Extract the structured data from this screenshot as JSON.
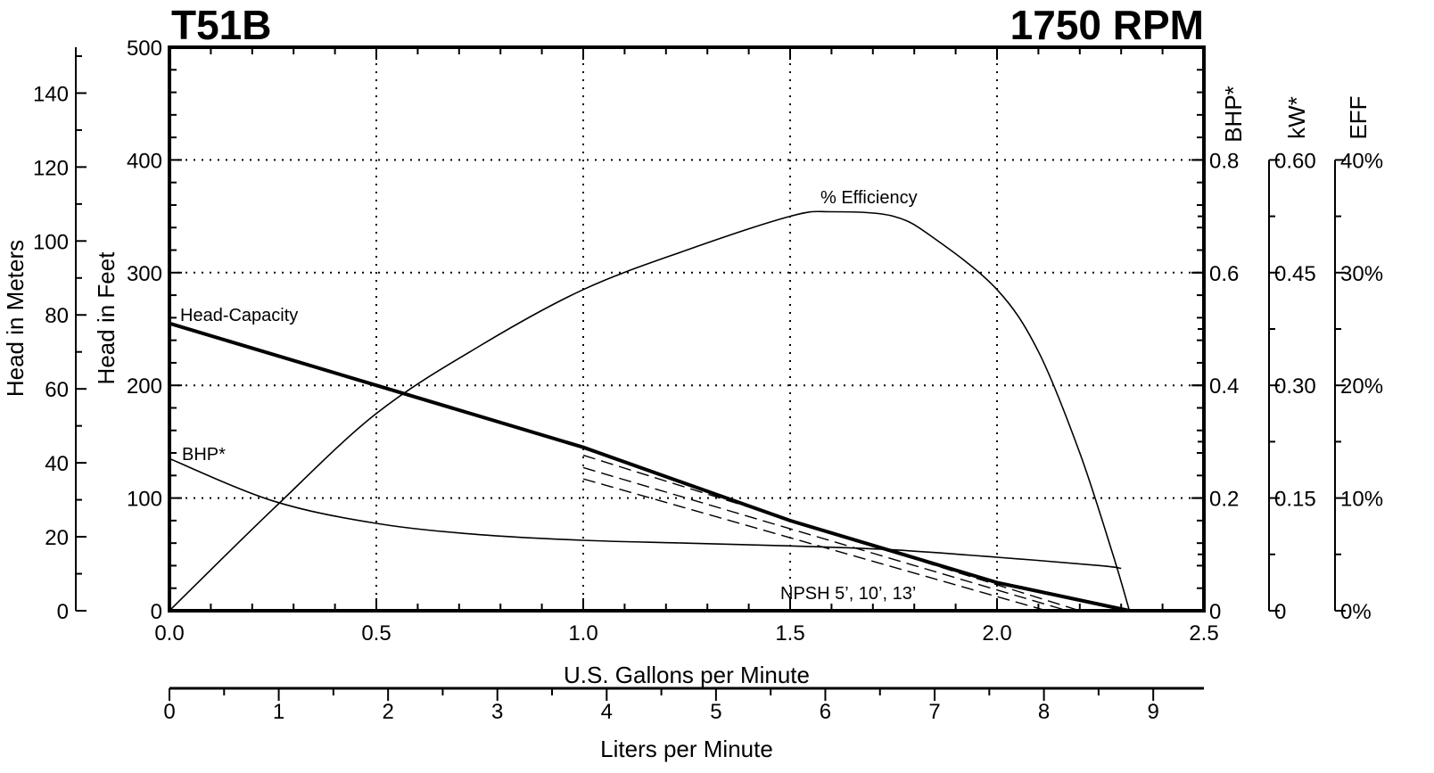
{
  "chart_data": {
    "type": "line",
    "title_left": "T51B",
    "title_right": "1750 RPM",
    "xlabel": "U.S. Gallons per Minute",
    "xlabel_secondary": "Liters per Minute",
    "ylabel_feet": "Head in Feet",
    "ylabel_meters": "Head in Meters",
    "ylabel_bhp": "BHP*",
    "ylabel_kw": "kW*",
    "ylabel_eff": "EFF",
    "xlim": [
      0,
      2.5
    ],
    "ylim_feet": [
      0,
      500
    ],
    "x_ticks": [
      "0.0",
      "0.5",
      "1.0",
      "1.5",
      "2.0",
      "2.5"
    ],
    "y_ticks_feet": [
      "0",
      "100",
      "200",
      "300",
      "400",
      "500"
    ],
    "y_ticks_meters": [
      "0",
      "20",
      "40",
      "60",
      "80",
      "100",
      "120",
      "140"
    ],
    "lpm_ticks": [
      "0",
      "1",
      "2",
      "3",
      "4",
      "5",
      "6",
      "7",
      "8",
      "9"
    ],
    "bhp_ticks": [
      "0",
      "0.2",
      "0.4",
      "0.6",
      "0.8"
    ],
    "kw_ticks": [
      "0",
      "0.15",
      "0.30",
      "0.45",
      "0.60"
    ],
    "eff_ticks": [
      "0%",
      "10%",
      "20%",
      "30%",
      "40%"
    ],
    "grid": true,
    "series": [
      {
        "name": "Head-Capacity",
        "units": "ft",
        "x": [
          0,
          0.5,
          1.0,
          1.5,
          2.0,
          2.32
        ],
        "y": [
          255,
          200,
          145,
          80,
          25,
          0
        ]
      },
      {
        "name": "% Efficiency",
        "units": "%",
        "x": [
          0,
          0.25,
          0.5,
          0.75,
          1.0,
          1.25,
          1.5,
          1.6,
          1.75,
          1.85,
          2.0,
          2.1,
          2.2,
          2.28,
          2.32
        ],
        "y": [
          0,
          9,
          17.5,
          23.5,
          28.5,
          32,
          35,
          35.4,
          35,
          33,
          28.5,
          23,
          14,
          5,
          0
        ]
      },
      {
        "name": "BHP*",
        "units": "hp",
        "x": [
          0,
          0.25,
          0.5,
          0.75,
          1.0,
          1.25,
          1.5,
          1.75,
          2.0,
          2.25,
          2.3
        ],
        "y": [
          0.27,
          0.195,
          0.155,
          0.135,
          0.125,
          0.12,
          0.115,
          0.108,
          0.095,
          0.08,
          0.075
        ]
      }
    ],
    "npsh_lines": [
      {
        "x": [
          1.0,
          2.2
        ],
        "y": [
          138,
          0
        ]
      },
      {
        "x": [
          1.0,
          2.17
        ],
        "y": [
          127,
          0
        ]
      },
      {
        "x": [
          1.0,
          2.12
        ],
        "y": [
          117,
          0
        ]
      }
    ],
    "annotations": [
      "Head-Capacity",
      "% Efficiency",
      "BHP*",
      "NPSH 5’, 10’, 13’"
    ]
  }
}
